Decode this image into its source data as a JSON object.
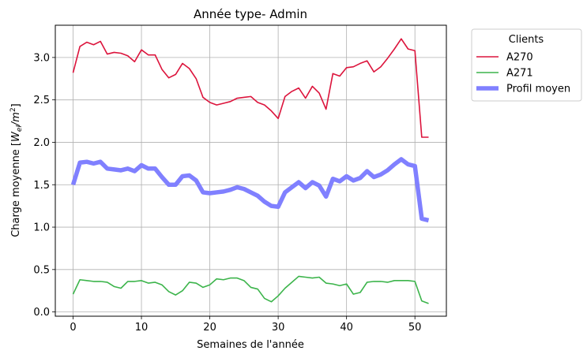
{
  "chart_data": {
    "type": "line",
    "title": "Année type- Admin",
    "xlabel": "Semaines de l'année",
    "ylabel": "Charge moyenne [W_el/m^2]",
    "xlim": [
      -2.6,
      54.6
    ],
    "ylim": [
      -0.05,
      3.38
    ],
    "xticks": [
      0,
      10,
      20,
      30,
      40,
      50
    ],
    "yticks": [
      0.0,
      0.5,
      1.0,
      1.5,
      2.0,
      2.5,
      3.0
    ],
    "grid": true,
    "legend": {
      "title": "Clients",
      "placement": "outside-top-right"
    },
    "series": [
      {
        "name": "A270",
        "color": "#dc143c",
        "x": [
          0,
          1,
          2,
          3,
          4,
          5,
          6,
          7,
          8,
          9,
          10,
          11,
          12,
          13,
          14,
          15,
          16,
          17,
          18,
          19,
          20,
          21,
          22,
          23,
          24,
          25,
          26,
          27,
          28,
          29,
          30,
          31,
          32,
          33,
          34,
          35,
          36,
          37,
          38,
          39,
          40,
          41,
          42,
          43,
          44,
          45,
          46,
          47,
          48,
          49,
          50,
          51,
          52
        ],
        "values": [
          2.82,
          3.13,
          3.18,
          3.15,
          3.19,
          3.04,
          3.06,
          3.05,
          3.02,
          2.95,
          3.09,
          3.03,
          3.03,
          2.86,
          2.76,
          2.8,
          2.93,
          2.87,
          2.75,
          2.53,
          2.47,
          2.44,
          2.46,
          2.48,
          2.52,
          2.53,
          2.54,
          2.47,
          2.44,
          2.37,
          2.28,
          2.54,
          2.6,
          2.64,
          2.52,
          2.66,
          2.58,
          2.39,
          2.81,
          2.78,
          2.88,
          2.89,
          2.93,
          2.96,
          2.83,
          2.89,
          2.99,
          3.1,
          3.22,
          3.1,
          3.08,
          2.06,
          2.06
        ]
      },
      {
        "name": "A271",
        "color": "#3cb44b",
        "x": [
          0,
          1,
          2,
          3,
          4,
          5,
          6,
          7,
          8,
          9,
          10,
          11,
          12,
          13,
          14,
          15,
          16,
          17,
          18,
          19,
          20,
          21,
          22,
          23,
          24,
          25,
          26,
          27,
          28,
          29,
          30,
          31,
          32,
          33,
          34,
          35,
          36,
          37,
          38,
          39,
          40,
          41,
          42,
          43,
          44,
          45,
          46,
          47,
          48,
          49,
          50,
          51,
          52
        ],
        "values": [
          0.21,
          0.38,
          0.37,
          0.36,
          0.36,
          0.35,
          0.3,
          0.28,
          0.36,
          0.36,
          0.37,
          0.34,
          0.35,
          0.32,
          0.24,
          0.2,
          0.25,
          0.35,
          0.34,
          0.29,
          0.32,
          0.39,
          0.38,
          0.4,
          0.4,
          0.37,
          0.29,
          0.27,
          0.16,
          0.12,
          0.19,
          0.28,
          0.35,
          0.42,
          0.41,
          0.4,
          0.41,
          0.34,
          0.33,
          0.31,
          0.33,
          0.21,
          0.23,
          0.35,
          0.36,
          0.36,
          0.35,
          0.37,
          0.37,
          0.37,
          0.36,
          0.13,
          0.1
        ]
      },
      {
        "name": "Profil moyen",
        "color": "#8080ff",
        "x": [
          0,
          1,
          2,
          3,
          4,
          5,
          6,
          7,
          8,
          9,
          10,
          11,
          12,
          13,
          14,
          15,
          16,
          17,
          18,
          19,
          20,
          21,
          22,
          23,
          24,
          25,
          26,
          27,
          28,
          29,
          30,
          31,
          32,
          33,
          34,
          35,
          36,
          37,
          38,
          39,
          40,
          41,
          42,
          43,
          44,
          45,
          46,
          47,
          48,
          49,
          50,
          51,
          52
        ],
        "values": [
          1.5,
          1.76,
          1.77,
          1.75,
          1.77,
          1.69,
          1.68,
          1.67,
          1.69,
          1.66,
          1.73,
          1.69,
          1.69,
          1.59,
          1.5,
          1.5,
          1.6,
          1.61,
          1.55,
          1.41,
          1.4,
          1.41,
          1.42,
          1.44,
          1.47,
          1.45,
          1.41,
          1.37,
          1.3,
          1.25,
          1.24,
          1.41,
          1.47,
          1.53,
          1.46,
          1.53,
          1.49,
          1.36,
          1.57,
          1.54,
          1.6,
          1.55,
          1.58,
          1.66,
          1.59,
          1.62,
          1.67,
          1.74,
          1.8,
          1.74,
          1.72,
          1.1,
          1.08
        ]
      }
    ]
  }
}
